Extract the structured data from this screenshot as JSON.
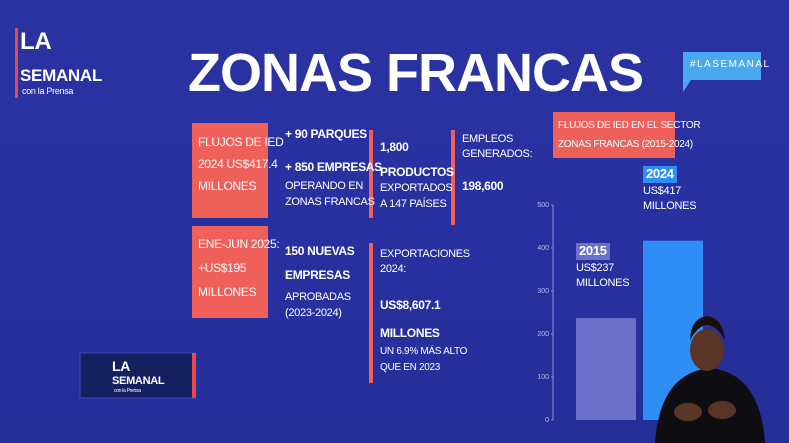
{
  "logo": {
    "name_top": "LA",
    "name_bottom": "SEMANAL",
    "tagline": "con la Prensa"
  },
  "title": "ZONAS FRANCAS",
  "hashtag": "#LASEMANAL",
  "boxes": [
    [
      "FLUJOS DE IED",
      "2024 US$417.4",
      "MILLONES"
    ],
    [
      "ENE-JUN 2025:",
      "+US$195",
      "MILLONES"
    ]
  ],
  "facts": {
    "parques": "+ 90 PARQUES",
    "empresas": "+ 850 EMPRESAS",
    "empresas_detail": [
      "OPERANDO EN",
      "ZONAS FRANCAS"
    ],
    "nuevas": [
      "150 NUEVAS",
      "EMPRESAS"
    ],
    "nuevas_detail": [
      "APROBADAS",
      "(2023-2024)"
    ],
    "productos": [
      "1,800",
      "PRODUCTOS"
    ],
    "productos_detail": [
      "EXPORTADOS",
      "A 147 PAÍSES"
    ],
    "exportaciones": [
      "EXPORTACIONES",
      "2024:"
    ],
    "exportaciones_value": [
      "US$8,607.1",
      "MILLONES"
    ],
    "exportaciones_detail": [
      "UN 6.9% MÁS ALTO",
      "QUE EN 2023"
    ],
    "empleos": [
      "EMPLEOS",
      "GENERADOS:"
    ],
    "empleos_value": "198,600"
  },
  "bug_logo": {
    "name_top": "LA",
    "name_bottom": "SEMANAL",
    "tagline": "con la Prensa"
  },
  "chart_data": {
    "type": "bar",
    "title": [
      "FLUJOS DE IED EN EL SECTOR",
      "ZONAS FRANCAS (2015-2024)"
    ],
    "categories": [
      "2015",
      "2024"
    ],
    "values": [
      237,
      417
    ],
    "value_labels": [
      "US$237 MILLONES",
      "US$417 MILLONES"
    ],
    "colors": [
      "#6b70c9",
      "#2f8ef5"
    ],
    "ylim": [
      0,
      500
    ],
    "yticks": [
      0,
      100,
      200,
      300,
      400,
      500
    ]
  }
}
